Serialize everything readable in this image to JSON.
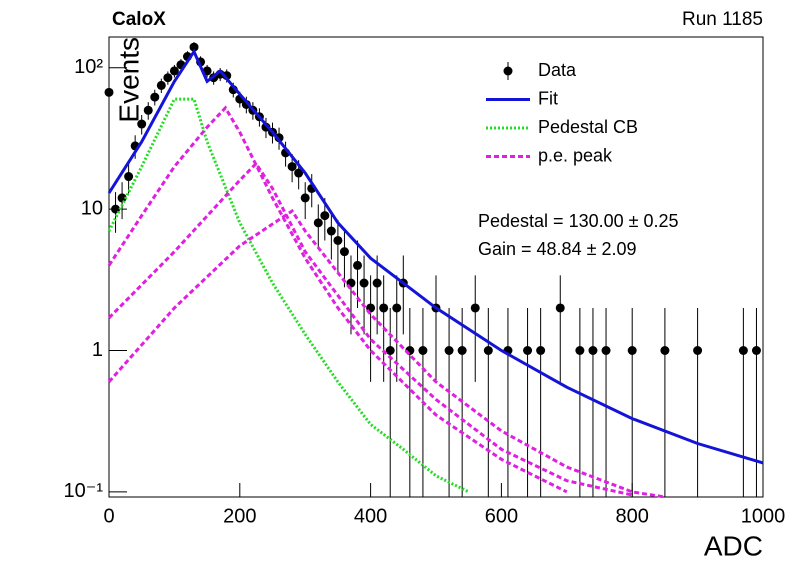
{
  "chart_data": {
    "type": "scatter",
    "title": "CaloX",
    "subtitle": "Run 1185",
    "x_label": "ADC",
    "y_label": "Events",
    "xlim": [
      0,
      1000
    ],
    "ylim": [
      0.092,
      165
    ],
    "log_y": true,
    "xticks": [
      0,
      200,
      400,
      600,
      800,
      1000
    ],
    "yticks": [
      {
        "value": 0.1,
        "label": "10⁻¹"
      },
      1,
      10,
      {
        "value": 100,
        "label": "10²"
      }
    ],
    "legend_position": "upper right",
    "annotations": [
      "Pedestal = 130.00 ± 0.25",
      "Gain = 48.84 ± 2.09"
    ],
    "series": [
      {
        "name": "Data",
        "style": "points",
        "color": "#000000",
        "x": [
          0,
          10,
          20,
          30,
          40,
          50,
          60,
          70,
          80,
          90,
          100,
          110,
          120,
          130,
          140,
          150,
          160,
          170,
          180,
          190,
          200,
          210,
          220,
          230,
          240,
          250,
          260,
          270,
          280,
          290,
          300,
          310,
          320,
          330,
          340,
          350,
          360,
          370,
          380,
          390,
          400,
          410,
          420,
          430,
          440,
          450,
          460,
          480,
          500,
          520,
          540,
          560,
          580,
          610,
          640,
          660,
          690,
          720,
          740,
          760,
          800,
          850,
          900,
          970,
          990
        ],
        "values": [
          67,
          10,
          12,
          17,
          28,
          40,
          50,
          62,
          75,
          85,
          95,
          105,
          120,
          140,
          110,
          95,
          85,
          90,
          88,
          70,
          60,
          55,
          50,
          45,
          38,
          35,
          32,
          25,
          20,
          18,
          12,
          14,
          8,
          9,
          7,
          6,
          5,
          3,
          4,
          3,
          2,
          3,
          2,
          1,
          2,
          3,
          1,
          1,
          2,
          1,
          1,
          2,
          1,
          1,
          1,
          1,
          2,
          1,
          1,
          1,
          1,
          1,
          1,
          1,
          1
        ],
        "errors": [
          8.2,
          3.2,
          3.5,
          4.1,
          5.3,
          6.3,
          7.1,
          7.9,
          8.7,
          9.2,
          9.7,
          10.2,
          11,
          11.8,
          10.5,
          9.7,
          9.2,
          9.5,
          9.4,
          8.4,
          7.7,
          7.4,
          7.1,
          6.7,
          6.2,
          5.9,
          5.7,
          5,
          4.5,
          4.2,
          3.5,
          3.7,
          2.8,
          3,
          2.6,
          2.4,
          2.2,
          1.7,
          2,
          1.7,
          1.4,
          1.7,
          1.4,
          1,
          1.4,
          1.7,
          1,
          1,
          1.4,
          1,
          1,
          1.4,
          1,
          1,
          1,
          1,
          1.4,
          1,
          1,
          1,
          1,
          1,
          1,
          1,
          1
        ]
      },
      {
        "name": "Fit",
        "style": "solid",
        "color": "#1414d8",
        "x": [
          0,
          50,
          100,
          130,
          150,
          170,
          200,
          250,
          300,
          350,
          400,
          500,
          600,
          700,
          800,
          900,
          1000
        ],
        "values": [
          13,
          30,
          80,
          130,
          80,
          95,
          65,
          35,
          18,
          8,
          4.5,
          2,
          1,
          0.55,
          0.33,
          0.22,
          0.16
        ]
      },
      {
        "name": "Pedestal CB",
        "style": "dotted",
        "color": "#22dd22",
        "x": [
          0,
          50,
          100,
          130,
          150,
          200,
          250,
          300,
          350,
          400,
          450,
          500,
          550
        ],
        "values": [
          7,
          20,
          60,
          60,
          30,
          8,
          3,
          1.3,
          0.6,
          0.3,
          0.2,
          0.13,
          0.1
        ]
      },
      {
        "name": "p.e. peak",
        "style": "dashed",
        "color": "#e020e0",
        "x": [
          0,
          50,
          100,
          150,
          178,
          200,
          250,
          300,
          350,
          400,
          500,
          600,
          700
        ],
        "values": [
          4,
          9,
          20,
          38,
          52,
          35,
          12,
          4.5,
          2,
          1,
          0.35,
          0.17,
          0.1
        ]
      },
      {
        "style": "dashed",
        "color": "#e020e0",
        "x": [
          0,
          100,
          200,
          225,
          250,
          300,
          400,
          500,
          600,
          700,
          800
        ],
        "values": [
          1.7,
          5,
          16,
          21,
          14,
          5,
          1.2,
          0.45,
          0.2,
          0.12,
          0.095
        ]
      },
      {
        "style": "dashed",
        "color": "#e020e0",
        "x": [
          0,
          100,
          200,
          280,
          300,
          400,
          500,
          600,
          700,
          800,
          850
        ],
        "values": [
          0.6,
          2,
          5.5,
          9.7,
          7,
          1.8,
          0.6,
          0.27,
          0.15,
          0.1,
          0.092
        ]
      }
    ]
  }
}
